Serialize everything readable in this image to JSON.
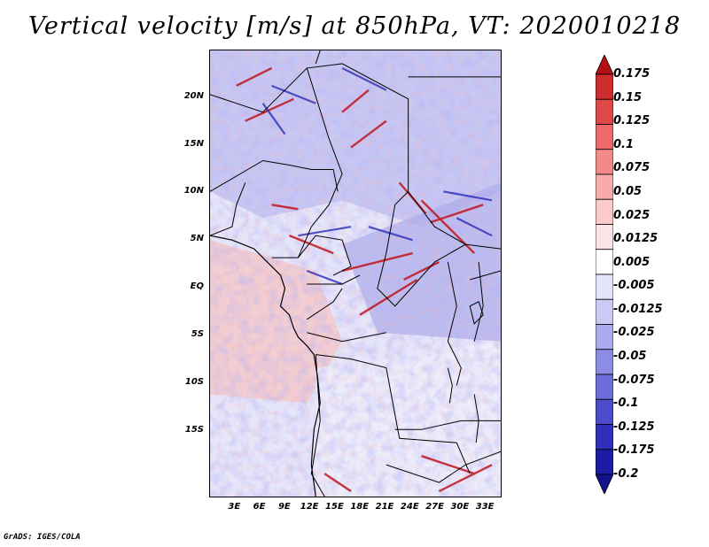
{
  "title": "Vertical velocity [m/s] at 850hPa, VT: 2020010218",
  "footer": "GrADS: IGES/COLA",
  "map": {
    "lon_range": [
      0,
      35
    ],
    "lat_range": [
      -22,
      25
    ],
    "lat_labels": [
      {
        "text": "20N",
        "lat": 20
      },
      {
        "text": "15N",
        "lat": 15
      },
      {
        "text": "10N",
        "lat": 10
      },
      {
        "text": "5N",
        "lat": 5
      },
      {
        "text": "EQ",
        "lat": 0
      },
      {
        "text": "5S",
        "lat": -5
      },
      {
        "text": "10S",
        "lat": -10
      },
      {
        "text": "15S",
        "lat": -15
      }
    ],
    "lon_labels": [
      {
        "text": "3E",
        "lon": 3
      },
      {
        "text": "6E",
        "lon": 6
      },
      {
        "text": "9E",
        "lon": 9
      },
      {
        "text": "12E",
        "lon": 12
      },
      {
        "text": "15E",
        "lon": 15
      },
      {
        "text": "18E",
        "lon": 18
      },
      {
        "text": "21E",
        "lon": 21
      },
      {
        "text": "24E",
        "lon": 24
      },
      {
        "text": "27E",
        "lon": 27
      },
      {
        "text": "30E",
        "lon": 30
      },
      {
        "text": "33E",
        "lon": 33
      }
    ]
  },
  "colorbar": {
    "labels": [
      "0.175",
      "0.15",
      "0.125",
      "0.1",
      "0.075",
      "0.05",
      "0.025",
      "0.0125",
      "0.005",
      "-0.005",
      "-0.0125",
      "-0.025",
      "-0.05",
      "-0.075",
      "-0.1",
      "-0.125",
      "-0.175",
      "-0.2"
    ],
    "colors": [
      "#b40f14",
      "#cf2d2d",
      "#e04848",
      "#ec6a6a",
      "#f28a8a",
      "#f7abab",
      "#fbcaca",
      "#fde4e4",
      "#ffffff",
      "#e4e4fb",
      "#cacaf5",
      "#ababee",
      "#8c8ce4",
      "#6d6dda",
      "#4c4ccd",
      "#2f2fbb",
      "#1c1ca4",
      "#12128a"
    ]
  }
}
